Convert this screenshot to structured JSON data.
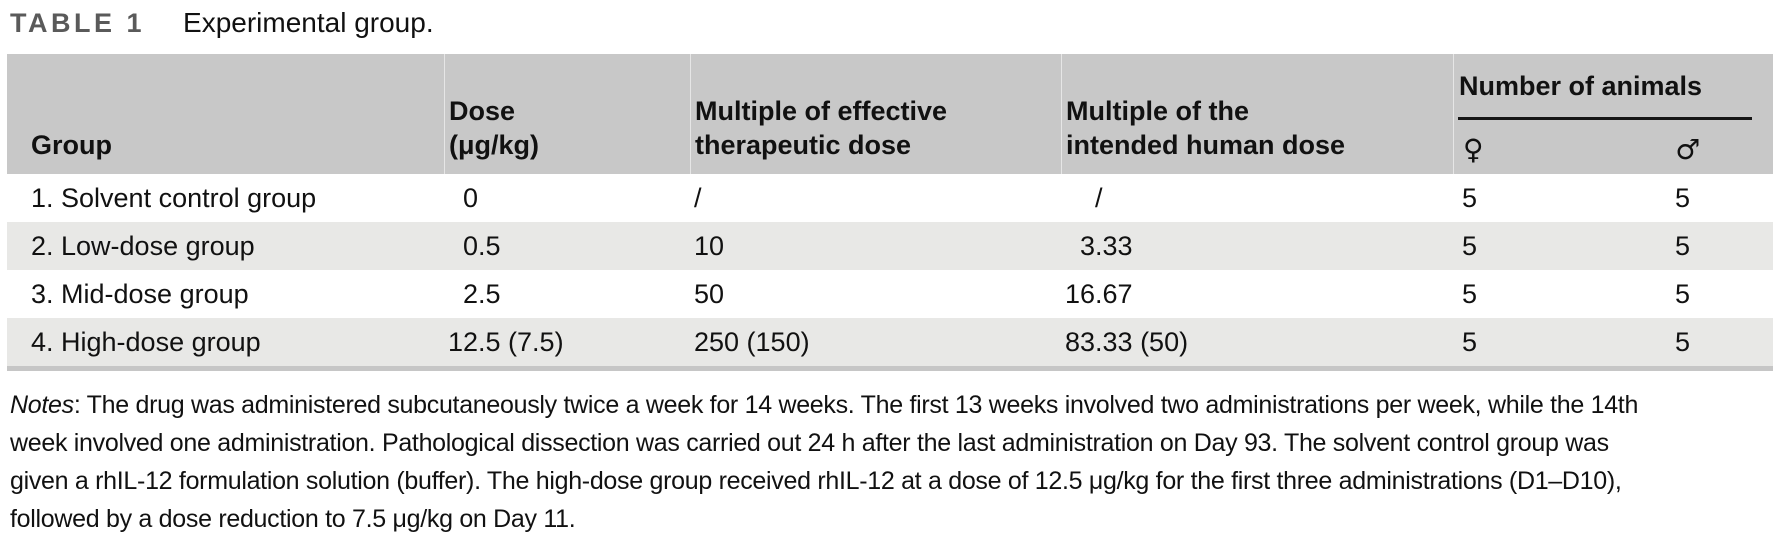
{
  "caption": {
    "label": "TABLE 1",
    "title": "Experimental group."
  },
  "table": {
    "columns": {
      "group": "Group",
      "dose_line1": "Dose",
      "dose_line2": "(μg/kg)",
      "effective_line1": "Multiple of effective",
      "effective_line2": "therapeutic dose",
      "human_line1": "Multiple of the",
      "human_line2": "intended human dose",
      "animals_group": "Number of animals",
      "female_symbol": "♀",
      "male_symbol": "♂"
    },
    "rows": [
      {
        "group": "1. Solvent control group",
        "dose": "0",
        "effective": "/",
        "human": "/",
        "female": "5",
        "male": "5"
      },
      {
        "group": "2. Low-dose group",
        "dose": "0.5",
        "effective": "10",
        "human": "3.33",
        "female": "5",
        "male": "5"
      },
      {
        "group": "3. Mid-dose group",
        "dose": "2.5",
        "effective": "50",
        "human": "16.67",
        "female": "5",
        "male": "5"
      },
      {
        "group": "4. High-dose group",
        "dose": "12.5 (7.5)",
        "effective": "250 (150)",
        "human": "83.33 (50)",
        "female": "5",
        "male": "5"
      }
    ]
  },
  "notes": {
    "label": "Notes",
    "lines": [
      ": The drug was administered subcutaneously twice a week for 14 weeks. The first 13 weeks involved two administrations per week, while the 14th",
      "week involved one administration. Pathological dissection was carried out 24 h after the last administration on Day 93. The solvent control group was",
      "given a rhIL-12 formulation solution (buffer). The high-dose group received rhIL-12 at a dose of 12.5 μg/kg for the first three administrations (D1–D10),",
      "followed by a dose reduction to 7.5 μg/kg on Day 11."
    ]
  },
  "colors": {
    "header_bg": "#c8c8c8",
    "row_alt_bg": "#e8e8e6",
    "table_bottom_border": "#c6c6c6",
    "caption_label": "#5a5a5a"
  }
}
